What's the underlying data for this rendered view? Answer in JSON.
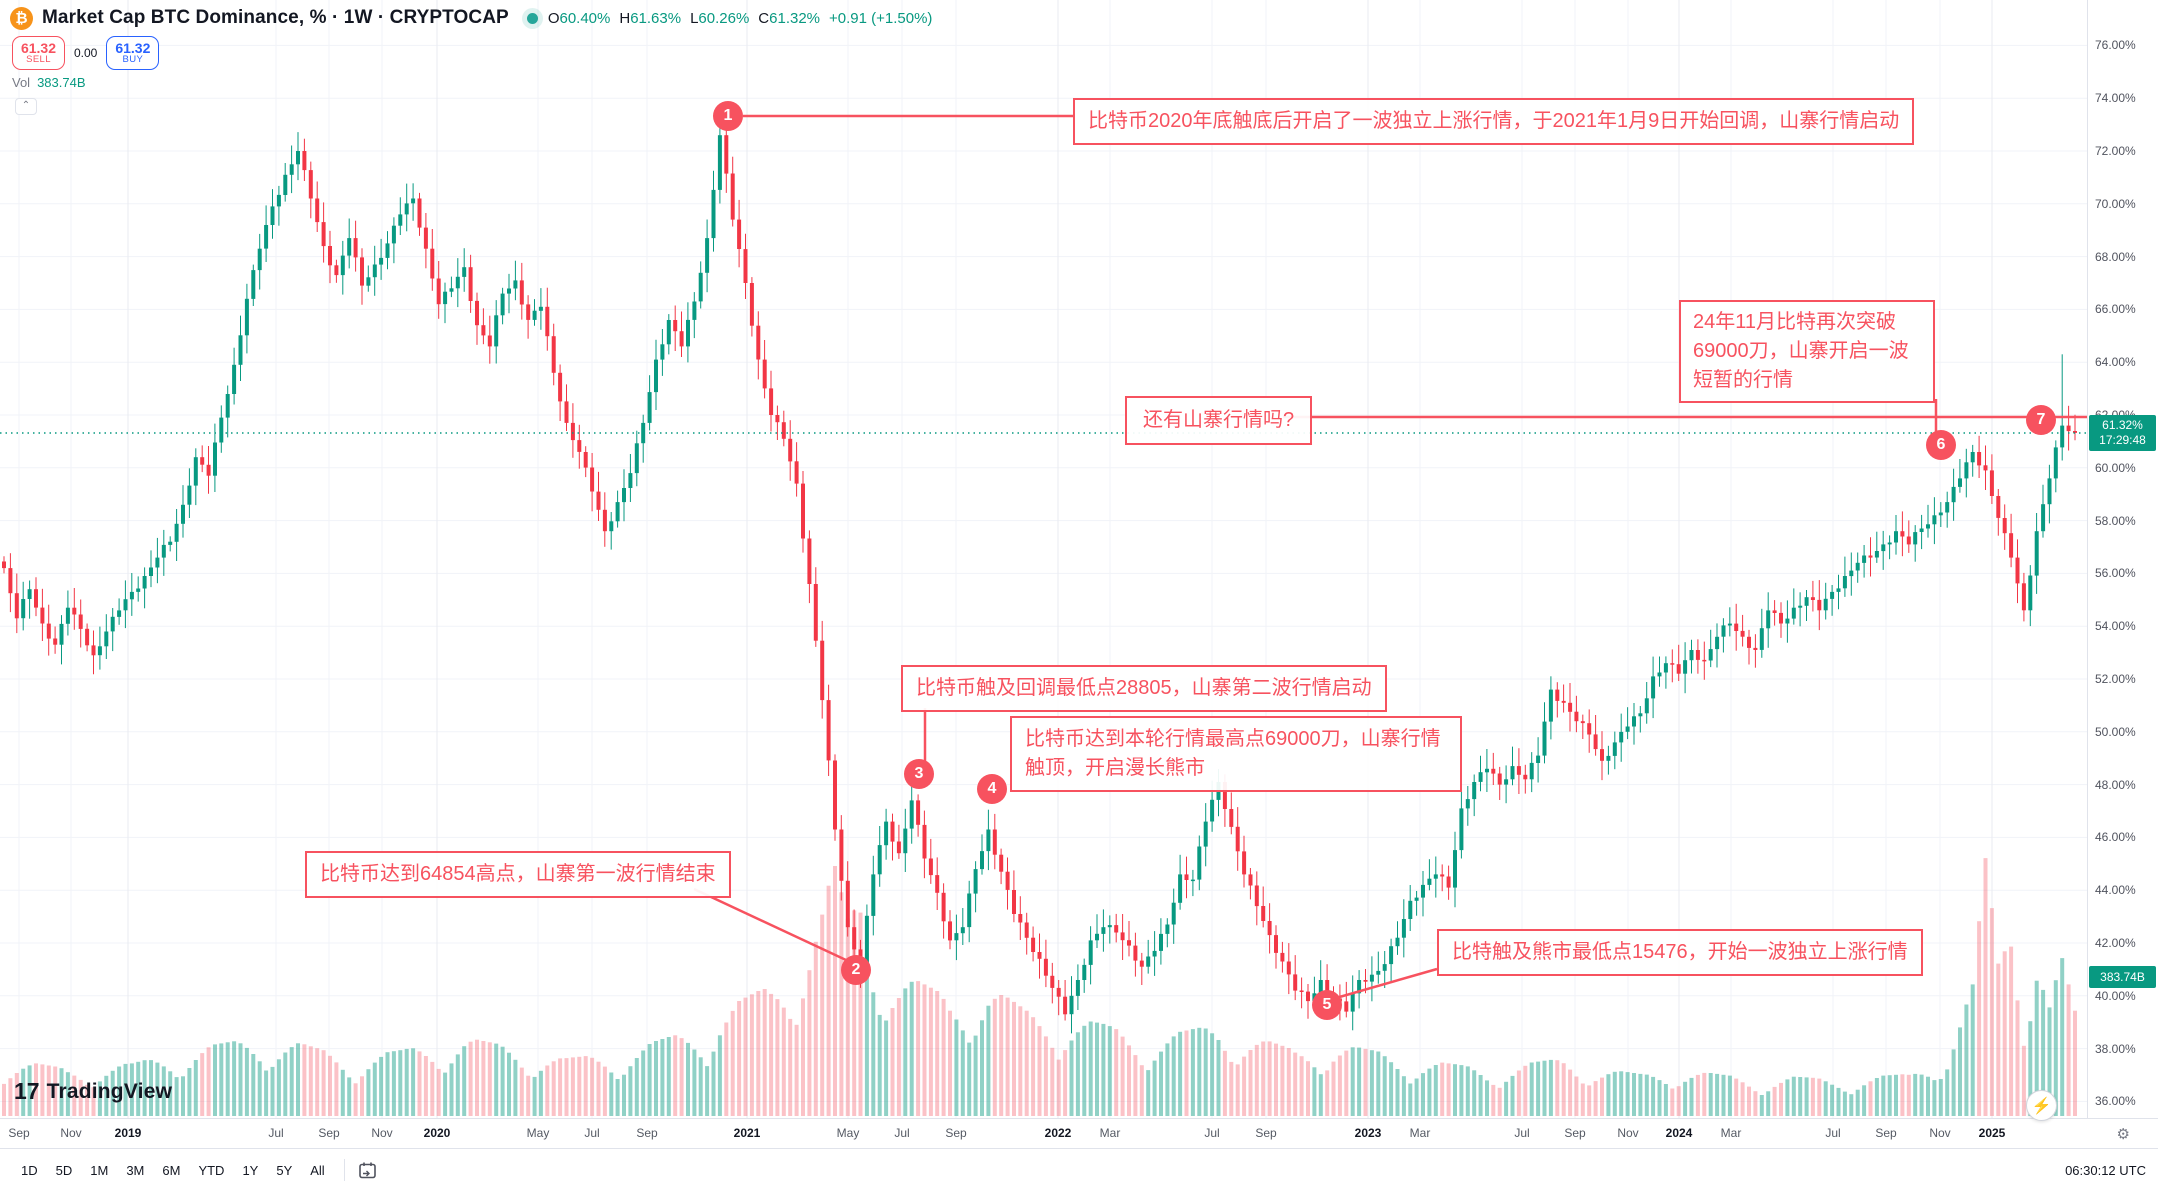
{
  "header": {
    "symbol_title": "Market Cap BTC Dominance, % · 1W · CRYPTOCAP",
    "ohlc": [
      {
        "label": "O",
        "value": "60.40%"
      },
      {
        "label": "H",
        "value": "61.63%"
      },
      {
        "label": "L",
        "value": "60.26%"
      },
      {
        "label": "C",
        "value": "61.32%"
      },
      {
        "label": "",
        "value": "+0.91 (+1.50%)"
      }
    ],
    "sell": {
      "price": "61.32",
      "label": "SELL"
    },
    "spread": "0.00",
    "buy": {
      "price": "61.32",
      "label": "BUY"
    },
    "volume_row": {
      "label": "Vol",
      "value": "383.74B"
    },
    "btc_icon": "₿"
  },
  "annotations": [
    {
      "id": "1",
      "text": "比特币2020年底触底后开启了一波独立上涨行情，于2021年1月9日开始回调，山寨行情启动"
    },
    {
      "id": "2",
      "text": "24年11月比特再次突破69000刀，山寨开启一波短暂的行情"
    },
    {
      "id": "3",
      "text": "还有山寨行情吗?"
    },
    {
      "id": "4",
      "text": "比特币触及回调最低点28805，山寨第二波行情启动"
    },
    {
      "id": "5",
      "text": "比特币达到本轮行情最高点69000刀，山寨行情触顶，开启漫长熊市"
    },
    {
      "id": "6",
      "text": "比特币达到64854高点，山寨第一波行情结束"
    },
    {
      "id": "7",
      "text": "比特触及熊市最低点15476，开始一波独立上涨行情"
    }
  ],
  "markers": [
    "1",
    "2",
    "3",
    "4",
    "5",
    "6",
    "7"
  ],
  "price_axis": {
    "ticks": [
      "76.00%",
      "74.00%",
      "72.00%",
      "70.00%",
      "68.00%",
      "66.00%",
      "64.00%",
      "62.00%",
      "60.00%",
      "58.00%",
      "56.00%",
      "54.00%",
      "52.00%",
      "50.00%",
      "48.00%",
      "46.00%",
      "44.00%",
      "42.00%",
      "40.00%",
      "38.00%",
      "36.00%"
    ],
    "current_tag": {
      "price": "61.32%",
      "countdown": "17:29:48"
    },
    "volume_tag": "383.74B"
  },
  "time_axis": {
    "labels": [
      [
        "Sep",
        19,
        0
      ],
      [
        "Nov",
        71,
        0
      ],
      [
        "2019",
        128,
        1
      ],
      [
        "Jul",
        276,
        0
      ],
      [
        "Sep",
        329,
        0
      ],
      [
        "Nov",
        382,
        0
      ],
      [
        "2020",
        437,
        1
      ],
      [
        "May",
        538,
        0
      ],
      [
        "Jul",
        592,
        0
      ],
      [
        "Sep",
        647,
        0
      ],
      [
        "2021",
        747,
        1
      ],
      [
        "May",
        848,
        0
      ],
      [
        "Jul",
        902,
        0
      ],
      [
        "Sep",
        956,
        0
      ],
      [
        "2022",
        1058,
        1
      ],
      [
        "Mar",
        1110,
        0
      ],
      [
        "Jul",
        1212,
        0
      ],
      [
        "Sep",
        1266,
        0
      ],
      [
        "2023",
        1368,
        1
      ],
      [
        "Mar",
        1420,
        0
      ],
      [
        "Jul",
        1522,
        0
      ],
      [
        "Sep",
        1575,
        0
      ],
      [
        "Nov",
        1628,
        0
      ],
      [
        "2024",
        1679,
        1
      ],
      [
        "Mar",
        1731,
        0
      ],
      [
        "Jul",
        1833,
        0
      ],
      [
        "Sep",
        1886,
        0
      ],
      [
        "Nov",
        1940,
        0
      ],
      [
        "2025",
        1992,
        1
      ]
    ]
  },
  "toolbar": {
    "ranges": [
      "1D",
      "5D",
      "1M",
      "3M",
      "6M",
      "YTD",
      "1Y",
      "5Y",
      "All"
    ],
    "clock": "06:30:12 UTC"
  },
  "branding": {
    "mark": "17",
    "name": "TradingView"
  },
  "colors": {
    "up": "#089981",
    "down": "#f23645",
    "accent_red": "#f7525f",
    "buy_blue": "#2962ff",
    "btc_orange": "#f7931a",
    "teal_tag": "#089981"
  },
  "chart_data": {
    "type": "candlestick",
    "title": "Market Cap BTC Dominance",
    "interval": "1W",
    "ylabel": "%",
    "ylim": [
      36,
      76
    ],
    "grid": true,
    "x_start": "2018-09",
    "x_end": "2025-02",
    "current": {
      "price_pct": 61.32,
      "change": "+0.91 (+1.50%)",
      "countdown": "17:29:48",
      "volume": "383.74B"
    },
    "anchors_close_pct": [
      56.2,
      54.3,
      55.4,
      54.1,
      53.3,
      54.7,
      53.9,
      52.9,
      53.8,
      54.6,
      55.3,
      55.9,
      56.6,
      57.2,
      58.6,
      60.4,
      59.7,
      61.9,
      63.9,
      66.4,
      68.3,
      69.9,
      71.1,
      72.0,
      70.2,
      68.4,
      67.3,
      68.7,
      66.9,
      67.7,
      68.5,
      69.6,
      70.2,
      68.3,
      66.2,
      66.8,
      67.6,
      65.4,
      64.6,
      66.6,
      67.1,
      65.6,
      66.1,
      63.6,
      61.7,
      60.6,
      59.1,
      57.6,
      58.7,
      59.8,
      61.7,
      64.1,
      65.6,
      64.6,
      66.3,
      68.7,
      72.6,
      69.4,
      67.0,
      64.1,
      62.0,
      61.1,
      59.4,
      55.6,
      51.2,
      46.3,
      42.6,
      41.2,
      44.6,
      46.6,
      45.4,
      47.4,
      45.2,
      43.9,
      42.1,
      42.6,
      44.8,
      46.3,
      44.7,
      43.1,
      42.2,
      41.4,
      40.3,
      39.3,
      40.6,
      42.1,
      42.6,
      42.4,
      41.9,
      41.1,
      41.7,
      42.7,
      44.6,
      44.4,
      46.6,
      48.1,
      46.4,
      44.6,
      43.4,
      42.3,
      41.3,
      40.2,
      39.8,
      40.6,
      39.9,
      39.4,
      40.6,
      40.8,
      41.2,
      42.2,
      43.6,
      44.2,
      44.6,
      44.1,
      47.1,
      48.1,
      48.6,
      48.0,
      48.7,
      48.2,
      49.1,
      51.6,
      51.1,
      50.4,
      49.9,
      48.9,
      49.6,
      50.2,
      50.7,
      52.1,
      52.6,
      52.2,
      53.1,
      52.7,
      53.6,
      54.1,
      53.6,
      53.1,
      54.6,
      54.1,
      54.7,
      55.1,
      54.6,
      55.3,
      55.9,
      56.4,
      56.6,
      57.1,
      57.6,
      57.1,
      57.7,
      58.2,
      58.7,
      59.6,
      60.6,
      59.9,
      58.1,
      56.6,
      54.6,
      57.6,
      59.6,
      61.6,
      61.32
    ],
    "key_points": [
      {
        "marker": "1",
        "date": "2021-01",
        "value_pct": 73.4
      },
      {
        "marker": "2",
        "date": "2021-05",
        "value_pct": 40.3
      },
      {
        "marker": "3",
        "date": "2021-07",
        "value_pct": 47.4
      },
      {
        "marker": "4",
        "date": "2021-10",
        "value_pct": 46.3
      },
      {
        "marker": "5",
        "date": "2022-11",
        "value_pct": 39.4
      },
      {
        "marker": "6",
        "date": "2024-11",
        "value_pct": 60.6
      },
      {
        "marker": "7",
        "date": "2025-02",
        "value_pct": 61.32
      }
    ],
    "wick_spike": {
      "anchor": 161,
      "high_pct": 64.3
    },
    "volume_profile": [
      [
        0,
        0.22
      ],
      [
        5,
        0.18
      ],
      [
        10,
        0.2
      ],
      [
        15,
        0.26
      ],
      [
        20,
        0.3
      ],
      [
        23,
        0.28
      ],
      [
        27,
        0.22
      ],
      [
        31,
        0.25
      ],
      [
        36,
        0.3
      ],
      [
        40,
        0.26
      ],
      [
        44,
        0.22
      ],
      [
        48,
        0.24
      ],
      [
        52,
        0.3
      ],
      [
        55,
        0.34
      ],
      [
        56,
        0.4
      ],
      [
        58,
        0.45
      ],
      [
        60,
        0.5
      ],
      [
        62,
        0.6
      ],
      [
        64,
        0.8
      ],
      [
        65,
        0.95
      ],
      [
        66,
        0.75
      ],
      [
        67,
        0.85
      ],
      [
        68,
        0.65
      ],
      [
        70,
        0.55
      ],
      [
        72,
        0.5
      ],
      [
        74,
        0.45
      ],
      [
        77,
        0.5
      ],
      [
        80,
        0.4
      ],
      [
        83,
        0.38
      ],
      [
        86,
        0.35
      ],
      [
        89,
        0.3
      ],
      [
        92,
        0.32
      ],
      [
        95,
        0.35
      ],
      [
        98,
        0.3
      ],
      [
        101,
        0.25
      ],
      [
        104,
        0.28
      ],
      [
        107,
        0.25
      ],
      [
        110,
        0.22
      ],
      [
        113,
        0.2
      ],
      [
        116,
        0.18
      ],
      [
        119,
        0.2
      ],
      [
        122,
        0.22
      ],
      [
        125,
        0.18
      ],
      [
        128,
        0.16
      ],
      [
        131,
        0.18
      ],
      [
        134,
        0.16
      ],
      [
        137,
        0.14
      ],
      [
        140,
        0.15
      ],
      [
        143,
        0.14
      ],
      [
        146,
        0.15
      ],
      [
        149,
        0.16
      ],
      [
        152,
        0.25
      ],
      [
        154,
        0.5
      ],
      [
        155,
        0.98
      ],
      [
        156,
        0.6
      ],
      [
        157,
        0.8
      ],
      [
        158,
        0.45
      ],
      [
        159,
        0.7
      ],
      [
        160,
        0.45
      ],
      [
        161,
        0.6
      ],
      [
        162,
        0.4
      ]
    ]
  }
}
